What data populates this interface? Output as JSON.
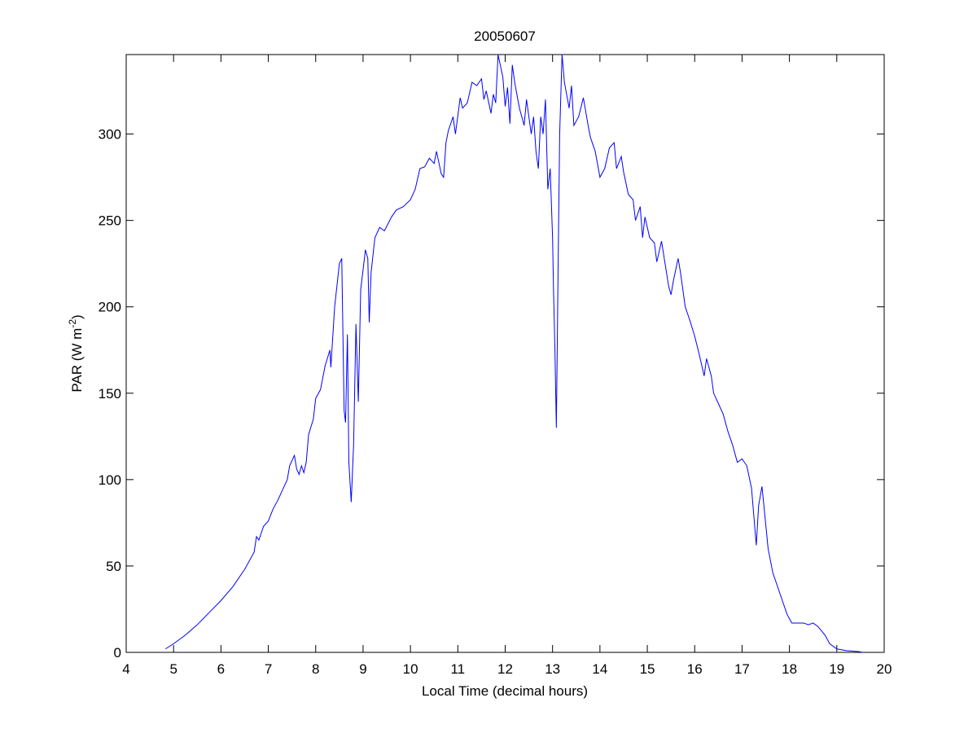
{
  "chart_data": {
    "type": "line",
    "title": "20050607",
    "xlabel": "Local Time (decimal hours)",
    "ylabel": [
      "PAR (W m",
      "-2",
      ")"
    ],
    "xlim": [
      4,
      20
    ],
    "xticks": [
      4,
      5,
      6,
      7,
      8,
      9,
      10,
      11,
      12,
      13,
      14,
      15,
      16,
      17,
      18,
      19,
      20
    ],
    "ylim": [
      0,
      346
    ],
    "yticks": [
      0,
      50,
      100,
      150,
      200,
      250,
      300
    ],
    "box": true,
    "series": [
      {
        "color": "#0000ff",
        "x": [
          4.83,
          5.0,
          5.25,
          5.5,
          5.75,
          6.0,
          6.25,
          6.5,
          6.7,
          6.75,
          6.8,
          6.9,
          7.0,
          7.1,
          7.2,
          7.3,
          7.4,
          7.45,
          7.55,
          7.6,
          7.65,
          7.7,
          7.75,
          7.8,
          7.85,
          7.95,
          8.0,
          8.1,
          8.2,
          8.3,
          8.32,
          8.4,
          8.5,
          8.55,
          8.6,
          8.63,
          8.67,
          8.7,
          8.75,
          8.8,
          8.85,
          8.9,
          8.95,
          9.05,
          9.1,
          9.13,
          9.17,
          9.25,
          9.35,
          9.45,
          9.6,
          9.7,
          9.85,
          10.0,
          10.1,
          10.2,
          10.3,
          10.4,
          10.5,
          10.55,
          10.65,
          10.7,
          10.75,
          10.8,
          10.9,
          10.95,
          11.05,
          11.1,
          11.2,
          11.3,
          11.4,
          11.5,
          11.55,
          11.6,
          11.7,
          11.75,
          11.8,
          11.85,
          11.95,
          12.0,
          12.05,
          12.1,
          12.15,
          12.2,
          12.3,
          12.4,
          12.45,
          12.55,
          12.6,
          12.65,
          12.7,
          12.75,
          12.8,
          12.85,
          12.9,
          12.95,
          13.0,
          13.02,
          13.05,
          13.08,
          13.12,
          13.15,
          13.2,
          13.25,
          13.35,
          13.4,
          13.45,
          13.55,
          13.65,
          13.75,
          13.8,
          13.9,
          14.0,
          14.1,
          14.2,
          14.3,
          14.35,
          14.45,
          14.5,
          14.6,
          14.7,
          14.75,
          14.85,
          14.9,
          14.95,
          15.05,
          15.15,
          15.2,
          15.3,
          15.45,
          15.5,
          15.55,
          15.65,
          15.7,
          15.8,
          15.9,
          16.0,
          16.1,
          16.2,
          16.25,
          16.35,
          16.4,
          16.5,
          16.6,
          16.7,
          16.8,
          16.9,
          17.0,
          17.1,
          17.2,
          17.3,
          17.35,
          17.42,
          17.45,
          17.55,
          17.65,
          17.75,
          17.85,
          17.95,
          18.05,
          18.2,
          18.3,
          18.4,
          18.5,
          18.6,
          18.75,
          18.85,
          19.0,
          19.2,
          19.45,
          19.55
        ],
        "values": [
          2,
          5,
          10,
          16,
          23,
          30,
          38,
          48,
          58,
          67,
          65,
          73,
          76,
          83,
          88,
          94,
          100,
          108,
          114,
          106,
          103,
          108,
          104,
          110,
          126,
          135,
          147,
          152,
          166,
          175,
          165,
          200,
          225,
          228,
          140,
          133,
          184,
          110,
          87,
          120,
          190,
          145,
          210,
          233,
          228,
          191,
          220,
          240,
          246,
          244,
          252,
          256,
          258,
          262,
          268,
          280,
          281,
          286,
          283,
          290,
          277,
          275,
          295,
          302,
          310,
          300,
          321,
          315,
          318,
          330,
          328,
          332,
          320,
          325,
          312,
          323,
          318,
          346,
          333,
          316,
          327,
          306,
          340,
          330,
          315,
          305,
          320,
          300,
          310,
          290,
          280,
          310,
          300,
          320,
          268,
          280,
          240,
          210,
          175,
          130,
          230,
          300,
          346,
          330,
          315,
          328,
          305,
          310,
          321,
          305,
          298,
          290,
          275,
          280,
          292,
          295,
          280,
          287,
          278,
          265,
          262,
          250,
          258,
          240,
          252,
          240,
          237,
          226,
          238,
          212,
          207,
          215,
          228,
          220,
          200,
          192,
          183,
          172,
          160,
          170,
          160,
          150,
          144,
          138,
          128,
          120,
          110,
          112,
          108,
          95,
          62,
          85,
          96,
          88,
          60,
          46,
          38,
          30,
          22,
          17,
          17,
          17,
          16,
          17,
          15,
          10,
          5,
          2,
          1,
          0.5,
          0
        ]
      }
    ]
  }
}
